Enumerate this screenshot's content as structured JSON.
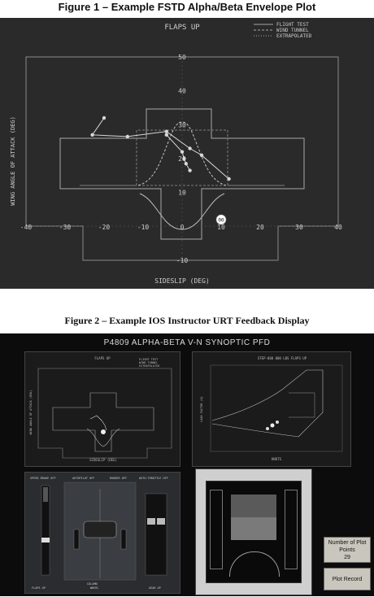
{
  "captions": {
    "figure1": "Figure 1 – Example FSTD Alpha/Beta Envelope Plot",
    "figure2": "Figure 2 – Example IOS Instructor URT Feedback Display"
  },
  "figure1": {
    "title": "FLAPS UP",
    "legend": [
      "FLIGHT TEST",
      "WIND TUNNEL",
      "EXTRAPOLATED"
    ],
    "xlabel": "SIDESLIP (DEG)",
    "ylabel": "WING ANGLE OF ATTACK (DEG)",
    "point_label": "00"
  },
  "chart_data": {
    "type": "line",
    "title": "FLAPS UP",
    "xlabel": "SIDESLIP (DEG)",
    "ylabel": "WING ANGLE OF ATTACK (DEG)",
    "xlim": [
      -40,
      40
    ],
    "ylim": [
      -10,
      50
    ],
    "x_ticks": [
      -40,
      -30,
      -20,
      -10,
      0,
      10,
      20,
      30,
      40
    ],
    "y_ticks": [
      -10,
      10,
      20,
      30,
      40,
      50
    ],
    "legend_placement": "top-right",
    "series": [
      {
        "name": "FLIGHT TEST",
        "x": [
          -20,
          -23,
          -14,
          -4,
          2,
          5,
          12
        ],
        "y": [
          32,
          27,
          26.5,
          28,
          23,
          21,
          14
        ]
      },
      {
        "name": "FLIGHT TEST",
        "x": [
          -4,
          0,
          0.5,
          1,
          2
        ],
        "y": [
          27,
          22,
          20,
          18.5,
          16.5
        ]
      }
    ],
    "annotation_point": {
      "x": 10,
      "y": 2,
      "label": "00"
    },
    "colors": {
      "trace": "#d8d8d8",
      "envelope": "#9a9a9a",
      "background": "#2a2a2a"
    }
  },
  "figure2": {
    "header": "P4809 ALPHA-BETA  V-N  SYNOPTIC  PFD",
    "alpha_beta_panel": {
      "title": "FLAPS UP",
      "ylabel": "WING ANGLE OF ATTACK (DEG)",
      "xlabel": "SIDESLIP (DEG)",
      "legend": [
        "FLIGHT TEST",
        "WIND TUNNEL",
        "EXTRAPOLATED"
      ]
    },
    "vn_panel": {
      "title": "STEP-000 000 LBS FLAPS UP",
      "ylabel": "LOAD FACTOR (G)",
      "xlabel": "KNOTS"
    },
    "synoptic_panel": {
      "top_labels": [
        "SPEED BRAKE OFF",
        "AUTOPILOT OFF",
        "RUDDER OFF",
        "AUTO-THROTTLE OFF"
      ],
      "bottom_labels": [
        "FLAPS UP",
        "COLUMN",
        "WHEEL",
        "GEAR UP"
      ]
    },
    "buttons": {
      "plot_points_label": "Number of Plot Points",
      "plot_points_value": "29",
      "plot_record": "Plot Record"
    }
  }
}
